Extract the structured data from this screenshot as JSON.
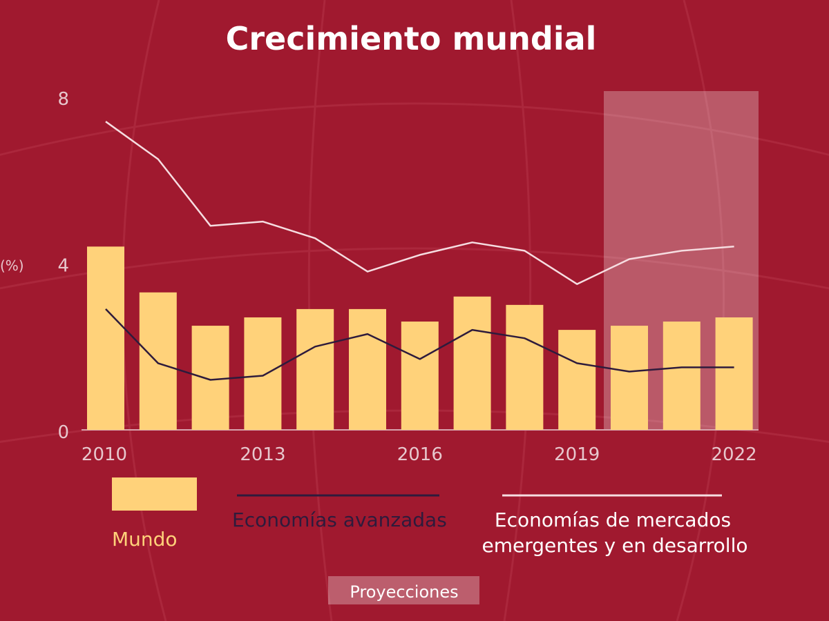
{
  "chart_data": {
    "type": "bar",
    "title": "Crecimiento mundial",
    "ylabel": "(%)",
    "ylim": [
      0,
      8
    ],
    "y_ticks": [
      "0",
      "4",
      "8"
    ],
    "x": [
      2010,
      2011,
      2012,
      2013,
      2014,
      2015,
      2016,
      2017,
      2018,
      2019,
      2020,
      2021,
      2022
    ],
    "x_tick_labels": [
      "2010",
      "2013",
      "2016",
      "2019",
      "2022"
    ],
    "x_tick_years": [
      2010,
      2013,
      2016,
      2019,
      2022
    ],
    "projection_start_year": 2020,
    "projection_label": "Proyecciones",
    "series": [
      {
        "name": "Mundo",
        "type": "bar",
        "color": "#ffd27a",
        "values": [
          4.4,
          3.3,
          2.5,
          2.7,
          2.9,
          2.9,
          2.6,
          3.2,
          3.0,
          2.4,
          2.5,
          2.6,
          2.7
        ]
      },
      {
        "name": "Economías avanzadas",
        "type": "line",
        "color": "#2e1b3c",
        "values": [
          2.9,
          1.6,
          1.2,
          1.3,
          2.0,
          2.3,
          1.7,
          2.4,
          2.2,
          1.6,
          1.4,
          1.5,
          1.5
        ]
      },
      {
        "name": "Economías de mercados emergentes y en desarrollo",
        "name_lines": [
          "Economías de mercados",
          "emergentes y en desarrollo"
        ],
        "type": "line",
        "color": "#f6dde1",
        "values": [
          7.4,
          6.5,
          4.9,
          5.0,
          4.6,
          3.8,
          4.2,
          4.5,
          4.3,
          3.5,
          4.1,
          4.3,
          4.4
        ]
      }
    ],
    "legend_position": "bottom",
    "grid": false
  }
}
